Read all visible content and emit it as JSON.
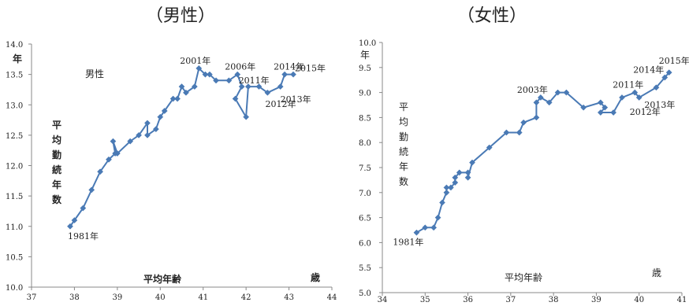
{
  "colors": {
    "series": "#4a7ab5",
    "axis": "#888888",
    "text": "#222222"
  },
  "chart_data": [
    {
      "type": "line",
      "title": "（男性）",
      "xlabel": "平均年齢",
      "ylabel": "平均勤続年数",
      "x_unit": "歳",
      "y_unit": "年",
      "xlim": [
        37,
        44
      ],
      "ylim": [
        10.0,
        14.0
      ],
      "x_ticks": [
        37,
        38,
        39,
        40,
        41,
        42,
        43,
        44
      ],
      "y_ticks": [
        "10.0",
        "10.5",
        "11.0",
        "11.5",
        "12.0",
        "12.5",
        "13.0",
        "13.5",
        "14.0"
      ],
      "grid": false,
      "legend": "none",
      "series_label": "男性",
      "series": [
        {
          "marker": "diamond",
          "x": [
            37.9,
            38.0,
            38.2,
            38.4,
            38.6,
            38.8,
            38.95,
            38.9,
            39.0,
            39.3,
            39.5,
            39.7,
            39.7,
            39.9,
            40.0,
            40.1,
            40.3,
            40.4,
            40.5,
            40.6,
            40.8,
            40.9,
            41.05,
            41.15,
            41.3,
            41.6,
            41.8,
            41.9,
            41.75,
            42.0,
            42.05,
            42.3,
            42.5,
            42.8,
            42.9,
            43.1
          ],
          "y": [
            11.0,
            11.1,
            11.3,
            11.6,
            11.9,
            12.1,
            12.2,
            12.4,
            12.2,
            12.4,
            12.5,
            12.7,
            12.5,
            12.6,
            12.8,
            12.9,
            13.1,
            13.1,
            13.3,
            13.2,
            13.3,
            13.6,
            13.5,
            13.5,
            13.4,
            13.4,
            13.5,
            13.3,
            13.1,
            12.8,
            13.3,
            13.3,
            13.2,
            13.3,
            13.5,
            13.5
          ]
        }
      ],
      "annotations": [
        {
          "text": "1981年",
          "x": 37.9,
          "y": 11.0
        },
        {
          "text": "2001年",
          "x": 40.9,
          "y": 13.6
        },
        {
          "text": "2006年",
          "x": 41.8,
          "y": 13.5
        },
        {
          "text": "2011年",
          "x": 41.9,
          "y": 13.3
        },
        {
          "text": "2012年",
          "x": 42.3,
          "y": 13.3
        },
        {
          "text": "2013年",
          "x": 42.8,
          "y": 13.3
        },
        {
          "text": "2014年",
          "x": 42.9,
          "y": 13.5
        },
        {
          "text": "2015年",
          "x": 43.1,
          "y": 13.5
        }
      ]
    },
    {
      "type": "line",
      "title": "（女性）",
      "xlabel": "平均年齢",
      "ylabel": "平均勤続年数",
      "x_unit": "歳",
      "y_unit": "年",
      "xlim": [
        34,
        41
      ],
      "ylim": [
        5.0,
        10.0
      ],
      "x_ticks": [
        34,
        35,
        36,
        37,
        38,
        39,
        40,
        41
      ],
      "y_ticks": [
        "5.0",
        "5.5",
        "6.0",
        "6.5",
        "7.0",
        "7.5",
        "8.0",
        "8.5",
        "9.0",
        "9.5",
        "10.0"
      ],
      "grid": false,
      "legend": "none",
      "series": [
        {
          "marker": "diamond",
          "x": [
            34.8,
            35.0,
            35.2,
            35.3,
            35.4,
            35.5,
            35.5,
            35.6,
            35.7,
            35.7,
            35.8,
            36.0,
            36.0,
            36.1,
            36.5,
            36.9,
            37.2,
            37.3,
            37.6,
            37.6,
            37.7,
            37.9,
            38.1,
            38.3,
            38.7,
            39.1,
            39.2,
            39.1,
            39.4,
            39.6,
            39.9,
            40.0,
            40.4,
            40.6,
            40.7
          ],
          "y": [
            6.2,
            6.3,
            6.3,
            6.5,
            6.8,
            7.0,
            7.1,
            7.1,
            7.2,
            7.3,
            7.4,
            7.4,
            7.3,
            7.6,
            7.9,
            8.2,
            8.2,
            8.4,
            8.5,
            8.8,
            8.9,
            8.8,
            9.0,
            9.0,
            8.7,
            8.8,
            8.7,
            8.6,
            8.6,
            8.9,
            9.0,
            8.9,
            9.1,
            9.3,
            9.4
          ]
        }
      ],
      "annotations": [
        {
          "text": "1981年",
          "x": 34.8,
          "y": 6.2
        },
        {
          "text": "2003年",
          "x": 37.7,
          "y": 8.9
        },
        {
          "text": "2011年",
          "x": 39.9,
          "y": 9.0
        },
        {
          "text": "2012年",
          "x": 40.0,
          "y": 8.9
        },
        {
          "text": "2013年",
          "x": 40.4,
          "y": 9.1
        },
        {
          "text": "2014年",
          "x": 40.6,
          "y": 9.3
        },
        {
          "text": "2015年",
          "x": 40.7,
          "y": 9.4
        }
      ]
    }
  ]
}
